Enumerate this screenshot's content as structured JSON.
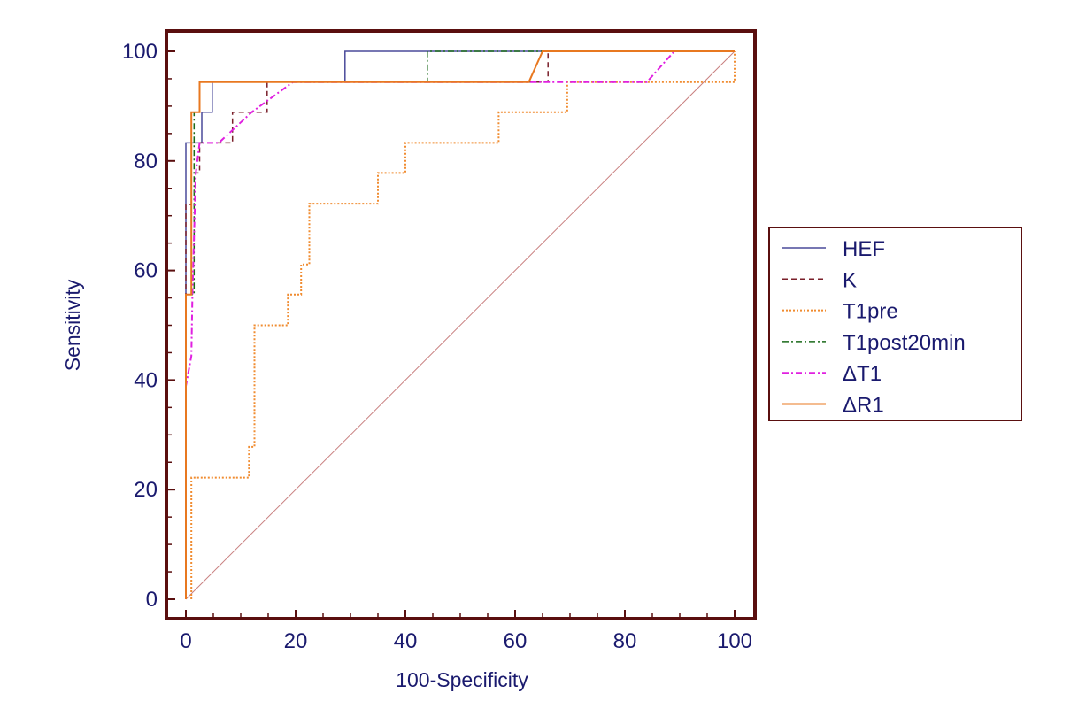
{
  "chart_data": {
    "type": "line",
    "xlabel": "100-Specificity",
    "ylabel": "Sensitivity",
    "xlim": [
      0,
      100
    ],
    "ylim": [
      0,
      100
    ],
    "xticks": [
      0,
      20,
      40,
      60,
      80,
      100
    ],
    "yticks": [
      0,
      20,
      40,
      60,
      80,
      100
    ],
    "legend_position": "right",
    "frame_color": "#5a0f0f",
    "tick_color": "#1a1a6e",
    "diagonal": {
      "color": "#c98080",
      "x": [
        0,
        100
      ],
      "y": [
        0,
        100
      ]
    },
    "series": [
      {
        "name": "HEF",
        "color": "#4a4a9a",
        "dash": "solid",
        "width": 1.5,
        "x": [
          0,
          0,
          0,
          2.9,
          2.9,
          3.8,
          3.8,
          4.8,
          4.8,
          29,
          29,
          100
        ],
        "y": [
          0,
          72,
          83.3,
          83.3,
          88.9,
          88.9,
          88.9,
          88.9,
          94.4,
          94.4,
          100,
          100
        ]
      },
      {
        "name": "K",
        "color": "#7a1f2a",
        "dash": "6,4",
        "width": 1.5,
        "x": [
          0,
          0,
          1,
          1,
          2.5,
          2.5,
          8.5,
          8.5,
          14.8,
          14.8,
          66,
          66,
          100
        ],
        "y": [
          0,
          72,
          72,
          77.8,
          77.8,
          83.3,
          83.3,
          88.9,
          88.9,
          94.4,
          94.4,
          100,
          100
        ]
      },
      {
        "name": "T1pre",
        "color": "#f08c30",
        "dash": "2,2",
        "width": 2,
        "x": [
          1,
          1,
          11.5,
          11.5,
          12.5,
          12.5,
          18.6,
          18.6,
          21,
          21,
          22.5,
          22.5,
          35,
          35,
          40,
          40,
          57,
          57,
          69.5,
          69.5,
          100,
          100
        ],
        "y": [
          0,
          22.2,
          22.2,
          27.8,
          27.8,
          50,
          50,
          55.6,
          55.6,
          61.1,
          61.1,
          72.2,
          72.2,
          77.8,
          77.8,
          83.3,
          83.3,
          88.9,
          88.9,
          94.4,
          94.4,
          100
        ]
      },
      {
        "name": "T1post20min",
        "color": "#1a6a1a",
        "dash": "7,3,2,3",
        "width": 1.5,
        "x": [
          0,
          0,
          1.5,
          1.5,
          2.5,
          2.5,
          44,
          44,
          100
        ],
        "y": [
          0,
          55.6,
          55.6,
          88.9,
          88.9,
          94.4,
          94.4,
          100,
          100
        ]
      },
      {
        "name": "ΔT1",
        "color": "#e020e0",
        "dash": "7,3,2,3",
        "width": 2,
        "x": [
          0,
          0,
          1,
          1.2,
          1.8,
          2.5,
          6,
          12,
          19.5,
          84,
          89,
          100
        ],
        "y": [
          0,
          38.9,
          44.4,
          55.6,
          77.8,
          83.3,
          83.3,
          88.9,
          94.4,
          94.4,
          100,
          100
        ]
      },
      {
        "name": "ΔR1",
        "color": "#e87820",
        "dash": "solid",
        "width": 2,
        "x": [
          0,
          0,
          1,
          1,
          2.5,
          2.5,
          62.5,
          65,
          100
        ],
        "y": [
          0,
          55.6,
          55.6,
          88.9,
          88.9,
          94.4,
          94.4,
          100,
          100
        ]
      }
    ]
  }
}
